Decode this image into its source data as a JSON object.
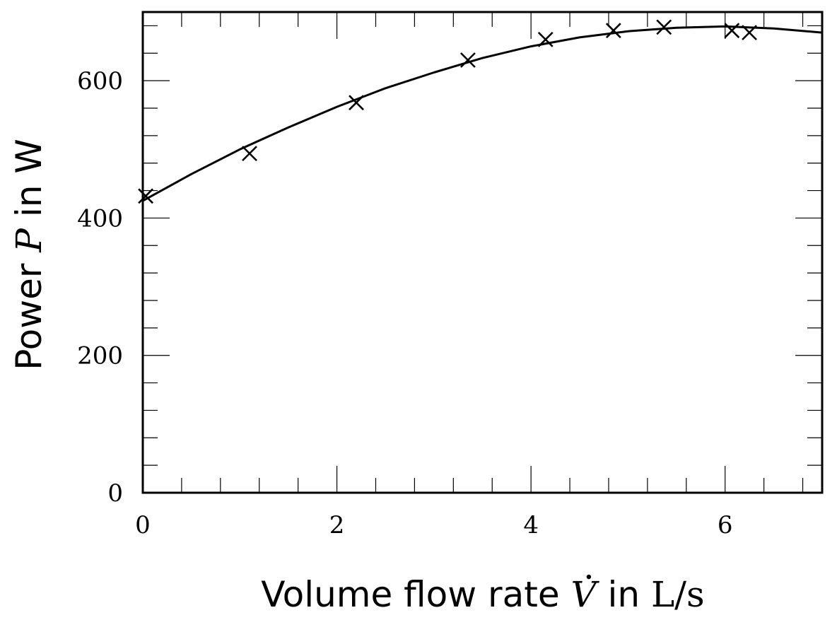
{
  "chart_data": {
    "type": "scatter",
    "xlabel": {
      "prefix": "Volume flow rate ",
      "symbol": "V",
      "middle": " in ",
      "unit": "L/s"
    },
    "ylabel": {
      "prefix": "Power ",
      "symbol": "P",
      "suffix": " in W"
    },
    "xlim": [
      0,
      7
    ],
    "ylim": [
      0,
      700
    ],
    "x_ticks": [
      0,
      2,
      4,
      6
    ],
    "x_tick_labels": [
      "0",
      "2",
      "4",
      "6"
    ],
    "y_ticks": [
      0,
      200,
      400,
      600
    ],
    "y_tick_labels": [
      "0",
      "200",
      "400",
      "600"
    ],
    "grid": false,
    "series": [
      {
        "kind": "markers",
        "marker": "x",
        "points": [
          {
            "x": 0.03,
            "y": 432
          },
          {
            "x": 1.1,
            "y": 494
          },
          {
            "x": 2.2,
            "y": 568
          },
          {
            "x": 3.35,
            "y": 630
          },
          {
            "x": 4.15,
            "y": 660
          },
          {
            "x": 4.85,
            "y": 673
          },
          {
            "x": 5.37,
            "y": 678
          },
          {
            "x": 6.07,
            "y": 673
          },
          {
            "x": 6.25,
            "y": 670
          }
        ]
      },
      {
        "kind": "line",
        "points": [
          {
            "x": 0.0,
            "y": 425
          },
          {
            "x": 0.5,
            "y": 464
          },
          {
            "x": 1.0,
            "y": 500
          },
          {
            "x": 1.5,
            "y": 532
          },
          {
            "x": 2.0,
            "y": 562
          },
          {
            "x": 2.5,
            "y": 589
          },
          {
            "x": 3.0,
            "y": 612
          },
          {
            "x": 3.5,
            "y": 633
          },
          {
            "x": 4.0,
            "y": 650
          },
          {
            "x": 4.5,
            "y": 663
          },
          {
            "x": 5.0,
            "y": 672
          },
          {
            "x": 5.5,
            "y": 677
          },
          {
            "x": 6.0,
            "y": 679
          },
          {
            "x": 6.5,
            "y": 676
          },
          {
            "x": 7.0,
            "y": 670
          }
        ]
      }
    ]
  }
}
